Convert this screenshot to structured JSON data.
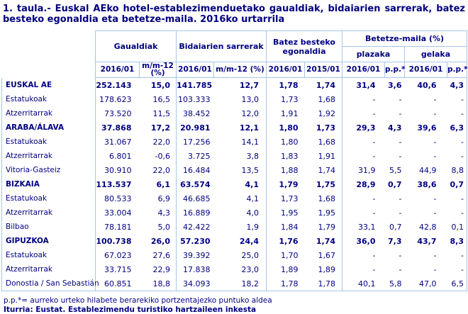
{
  "colors": {
    "text_navy": "#000080",
    "border_blue": "#A5C6E9"
  },
  "chart_data": {
    "type": "table",
    "title": "1. taula.- Euskal AEko hotel-establezimenduetako gaualdiak, bidaiarien sarrerak, batez besteko egonaldia eta betetze-maila. 2016ko urtarrila",
    "column_groups": [
      {
        "label": "Gaualdiak",
        "columns": [
          "2016/01",
          "m/m-12 (%)"
        ]
      },
      {
        "label": "Bidaiarien sarrerak",
        "columns": [
          "2016/01",
          "m/m-12 (%)"
        ]
      },
      {
        "label": "Batez besteko egonaldia",
        "columns": [
          "2016/01",
          "2015/01"
        ]
      },
      {
        "label": "Betetze-maila (%)",
        "subgroups": [
          {
            "label": "plazaka",
            "columns": [
              "2016/01",
              "p.p.*"
            ]
          },
          {
            "label": "gelaka",
            "columns": [
              "2016/01",
              "p.p.*"
            ]
          }
        ]
      }
    ],
    "rows": [
      {
        "label": "EUSKAL AE",
        "style": "total",
        "values": [
          "252.143",
          "15,0",
          "141.785",
          "12,7",
          "1,78",
          "1,74",
          "31,4",
          "3,6",
          "40,6",
          "4,3"
        ]
      },
      {
        "label": "Estatukoak",
        "style": "sub",
        "values": [
          "178.623",
          "16,5",
          "103.333",
          "13,0",
          "1,73",
          "1,68",
          "-",
          "-",
          "-",
          "-"
        ]
      },
      {
        "label": "Atzerritarrak",
        "style": "sub",
        "values": [
          "73.520",
          "11,5",
          "38.452",
          "12,0",
          "1,91",
          "1,92",
          "-",
          "-",
          "-",
          "-"
        ]
      },
      {
        "label": "ARABA/ÁLAVA",
        "style": "total",
        "values": [
          "37.868",
          "17,2",
          "20.981",
          "12,1",
          "1,80",
          "1,73",
          "29,3",
          "4,3",
          "39,6",
          "6,3"
        ]
      },
      {
        "label": "Estatukoak",
        "style": "sub",
        "values": [
          "31.067",
          "22,0",
          "17.256",
          "14,1",
          "1,80",
          "1,68",
          "-",
          "-",
          "-",
          "-"
        ]
      },
      {
        "label": "Atzerritarrak",
        "style": "sub",
        "values": [
          "6.801",
          "-0,6",
          "3.725",
          "3,8",
          "1,83",
          "1,91",
          "-",
          "-",
          "-",
          "-"
        ]
      },
      {
        "label": "Vitoria-Gasteiz",
        "style": "city",
        "values": [
          "30.910",
          "22,0",
          "16.484",
          "13,5",
          "1,88",
          "1,74",
          "31,9",
          "5,5",
          "44,9",
          "8,8"
        ]
      },
      {
        "label": "BIZKAIA",
        "style": "total",
        "values": [
          "113.537",
          "6,1",
          "63.574",
          "4,1",
          "1,79",
          "1,75",
          "28,9",
          "0,7",
          "38,6",
          "0,7"
        ]
      },
      {
        "label": "Estatukoak",
        "style": "sub",
        "values": [
          "80.533",
          "6,9",
          "46.685",
          "4,1",
          "1,73",
          "1,68",
          "-",
          "-",
          "-",
          "-"
        ]
      },
      {
        "label": "Atzerritarrak",
        "style": "sub",
        "values": [
          "33.004",
          "4,3",
          "16.889",
          "4,0",
          "1,95",
          "1,95",
          "-",
          "-",
          "-",
          "-"
        ]
      },
      {
        "label": "Bilbao",
        "style": "city",
        "values": [
          "78.181",
          "5,0",
          "42.422",
          "1,9",
          "1,84",
          "1,79",
          "33,1",
          "0,7",
          "42,8",
          "0,1"
        ]
      },
      {
        "label": "GIPUZKOA",
        "style": "total",
        "values": [
          "100.738",
          "26,0",
          "57.230",
          "24,4",
          "1,76",
          "1,74",
          "36,0",
          "7,3",
          "43,7",
          "8,3"
        ]
      },
      {
        "label": "Estatukoak",
        "style": "sub",
        "values": [
          "67.023",
          "27,6",
          "39.392",
          "25,0",
          "1,70",
          "1,67",
          "-",
          "-",
          "-",
          "-"
        ]
      },
      {
        "label": "Atzerritarrak",
        "style": "sub",
        "values": [
          "33.715",
          "22,9",
          "17.838",
          "23,0",
          "1,89",
          "1,89",
          "-",
          "-",
          "-",
          "-"
        ]
      },
      {
        "label": "Donostia / San Sebastián",
        "style": "city",
        "values": [
          "60.851",
          "18,8",
          "34.093",
          "18,2",
          "1,78",
          "1,78",
          "40,1",
          "5,8",
          "47,0",
          "6,5"
        ]
      }
    ],
    "footnote": "p.p.*= aurreko urteko hilabete berarekiko portzentajezko puntuko aldea",
    "source": "Iturria: Eustat. Establezimendu turistiko hartzaileen inkesta"
  }
}
